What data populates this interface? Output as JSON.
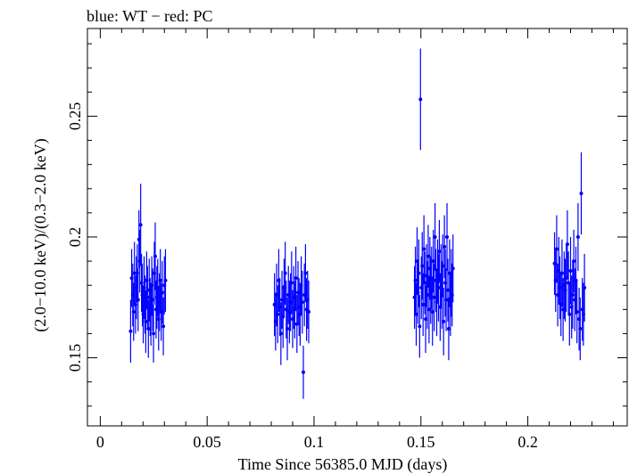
{
  "chart_data": {
    "type": "scatter",
    "title": "blue: WT − red: PC",
    "xlabel": "Time Since 56385.0 MJD (days)",
    "ylabel": "(2.0−10.0 keV)/(0.3−2.0 keV)",
    "xlim": [
      -0.006,
      0.2465
    ],
    "ylim": [
      0.1218,
      0.2863
    ],
    "x_ticks": [
      {
        "value": 0,
        "label": "0"
      },
      {
        "value": 0.05,
        "label": "0.05"
      },
      {
        "value": 0.1,
        "label": "0.1"
      },
      {
        "value": 0.15,
        "label": "0.15"
      },
      {
        "value": 0.2,
        "label": "0.2"
      }
    ],
    "y_ticks": [
      {
        "value": 0.15,
        "label": "0.15"
      },
      {
        "value": 0.2,
        "label": "0.2"
      },
      {
        "value": 0.25,
        "label": "0.25"
      }
    ],
    "grid": false,
    "legend": "none",
    "colors": {
      "WT": "#0000ff",
      "PC": "#ff0000"
    },
    "series": [
      {
        "name": "WT",
        "points": [
          {
            "x": 0.0142,
            "y": 0.161,
            "err": 0.013
          },
          {
            "x": 0.0147,
            "y": 0.183,
            "err": 0.012
          },
          {
            "x": 0.0152,
            "y": 0.176,
            "err": 0.013
          },
          {
            "x": 0.0156,
            "y": 0.169,
            "err": 0.012
          },
          {
            "x": 0.016,
            "y": 0.185,
            "err": 0.013
          },
          {
            "x": 0.0165,
            "y": 0.172,
            "err": 0.012
          },
          {
            "x": 0.0169,
            "y": 0.179,
            "err": 0.013
          },
          {
            "x": 0.0173,
            "y": 0.185,
            "err": 0.012
          },
          {
            "x": 0.0177,
            "y": 0.174,
            "err": 0.013
          },
          {
            "x": 0.0181,
            "y": 0.199,
            "err": 0.012
          },
          {
            "x": 0.0185,
            "y": 0.19,
            "err": 0.013
          },
          {
            "x": 0.0189,
            "y": 0.205,
            "err": 0.017
          },
          {
            "x": 0.0193,
            "y": 0.181,
            "err": 0.012
          },
          {
            "x": 0.0197,
            "y": 0.176,
            "err": 0.013
          },
          {
            "x": 0.0201,
            "y": 0.168,
            "err": 0.012
          },
          {
            "x": 0.0205,
            "y": 0.179,
            "err": 0.013
          },
          {
            "x": 0.0209,
            "y": 0.172,
            "err": 0.012
          },
          {
            "x": 0.0213,
            "y": 0.165,
            "err": 0.013
          },
          {
            "x": 0.0217,
            "y": 0.182,
            "err": 0.012
          },
          {
            "x": 0.0221,
            "y": 0.175,
            "err": 0.013
          },
          {
            "x": 0.0225,
            "y": 0.162,
            "err": 0.012
          },
          {
            "x": 0.0229,
            "y": 0.178,
            "err": 0.013
          },
          {
            "x": 0.0233,
            "y": 0.171,
            "err": 0.012
          },
          {
            "x": 0.0237,
            "y": 0.168,
            "err": 0.013
          },
          {
            "x": 0.0241,
            "y": 0.18,
            "err": 0.012
          },
          {
            "x": 0.0245,
            "y": 0.174,
            "err": 0.013
          },
          {
            "x": 0.0249,
            "y": 0.16,
            "err": 0.012
          },
          {
            "x": 0.0253,
            "y": 0.185,
            "err": 0.013
          },
          {
            "x": 0.0257,
            "y": 0.192,
            "err": 0.014
          },
          {
            "x": 0.0261,
            "y": 0.17,
            "err": 0.012
          },
          {
            "x": 0.0265,
            "y": 0.175,
            "err": 0.013
          },
          {
            "x": 0.0269,
            "y": 0.179,
            "err": 0.012
          },
          {
            "x": 0.0273,
            "y": 0.166,
            "err": 0.013
          },
          {
            "x": 0.0277,
            "y": 0.173,
            "err": 0.012
          },
          {
            "x": 0.0281,
            "y": 0.182,
            "err": 0.013
          },
          {
            "x": 0.0285,
            "y": 0.169,
            "err": 0.012
          },
          {
            "x": 0.029,
            "y": 0.177,
            "err": 0.013
          },
          {
            "x": 0.0295,
            "y": 0.163,
            "err": 0.012
          },
          {
            "x": 0.03,
            "y": 0.18,
            "err": 0.012
          },
          {
            "x": 0.0305,
            "y": 0.182,
            "err": 0.013
          },
          {
            "x": 0.0815,
            "y": 0.172,
            "err": 0.013
          },
          {
            "x": 0.082,
            "y": 0.165,
            "err": 0.012
          },
          {
            "x": 0.0825,
            "y": 0.176,
            "err": 0.013
          },
          {
            "x": 0.083,
            "y": 0.168,
            "err": 0.012
          },
          {
            "x": 0.0835,
            "y": 0.182,
            "err": 0.013
          },
          {
            "x": 0.084,
            "y": 0.171,
            "err": 0.012
          },
          {
            "x": 0.0845,
            "y": 0.16,
            "err": 0.013
          },
          {
            "x": 0.085,
            "y": 0.174,
            "err": 0.012
          },
          {
            "x": 0.0855,
            "y": 0.167,
            "err": 0.013
          },
          {
            "x": 0.086,
            "y": 0.179,
            "err": 0.012
          },
          {
            "x": 0.0865,
            "y": 0.185,
            "err": 0.013
          },
          {
            "x": 0.087,
            "y": 0.17,
            "err": 0.012
          },
          {
            "x": 0.0875,
            "y": 0.162,
            "err": 0.013
          },
          {
            "x": 0.088,
            "y": 0.176,
            "err": 0.012
          },
          {
            "x": 0.0885,
            "y": 0.169,
            "err": 0.013
          },
          {
            "x": 0.089,
            "y": 0.173,
            "err": 0.012
          },
          {
            "x": 0.0895,
            "y": 0.181,
            "err": 0.013
          },
          {
            "x": 0.09,
            "y": 0.166,
            "err": 0.012
          },
          {
            "x": 0.0905,
            "y": 0.175,
            "err": 0.013
          },
          {
            "x": 0.091,
            "y": 0.17,
            "err": 0.012
          },
          {
            "x": 0.0915,
            "y": 0.183,
            "err": 0.013
          },
          {
            "x": 0.092,
            "y": 0.164,
            "err": 0.012
          },
          {
            "x": 0.0925,
            "y": 0.177,
            "err": 0.013
          },
          {
            "x": 0.093,
            "y": 0.171,
            "err": 0.012
          },
          {
            "x": 0.0935,
            "y": 0.168,
            "err": 0.013
          },
          {
            "x": 0.094,
            "y": 0.18,
            "err": 0.012
          },
          {
            "x": 0.0945,
            "y": 0.173,
            "err": 0.013
          },
          {
            "x": 0.095,
            "y": 0.144,
            "err": 0.011
          },
          {
            "x": 0.0955,
            "y": 0.176,
            "err": 0.013
          },
          {
            "x": 0.096,
            "y": 0.185,
            "err": 0.012
          },
          {
            "x": 0.0965,
            "y": 0.17,
            "err": 0.013
          },
          {
            "x": 0.097,
            "y": 0.174,
            "err": 0.012
          },
          {
            "x": 0.0975,
            "y": 0.169,
            "err": 0.013
          },
          {
            "x": 0.147,
            "y": 0.175,
            "err": 0.013
          },
          {
            "x": 0.1474,
            "y": 0.182,
            "err": 0.014
          },
          {
            "x": 0.1478,
            "y": 0.168,
            "err": 0.013
          },
          {
            "x": 0.1482,
            "y": 0.19,
            "err": 0.014
          },
          {
            "x": 0.1486,
            "y": 0.177,
            "err": 0.013
          },
          {
            "x": 0.149,
            "y": 0.185,
            "err": 0.014
          },
          {
            "x": 0.1494,
            "y": 0.163,
            "err": 0.013
          },
          {
            "x": 0.1498,
            "y": 0.257,
            "err": 0.021
          },
          {
            "x": 0.1502,
            "y": 0.179,
            "err": 0.013
          },
          {
            "x": 0.1506,
            "y": 0.188,
            "err": 0.014
          },
          {
            "x": 0.151,
            "y": 0.172,
            "err": 0.013
          },
          {
            "x": 0.1514,
            "y": 0.195,
            "err": 0.014
          },
          {
            "x": 0.1518,
            "y": 0.181,
            "err": 0.013
          },
          {
            "x": 0.1522,
            "y": 0.166,
            "err": 0.014
          },
          {
            "x": 0.1526,
            "y": 0.184,
            "err": 0.013
          },
          {
            "x": 0.153,
            "y": 0.176,
            "err": 0.014
          },
          {
            "x": 0.1534,
            "y": 0.192,
            "err": 0.013
          },
          {
            "x": 0.1538,
            "y": 0.17,
            "err": 0.014
          },
          {
            "x": 0.1542,
            "y": 0.187,
            "err": 0.013
          },
          {
            "x": 0.1546,
            "y": 0.178,
            "err": 0.014
          },
          {
            "x": 0.155,
            "y": 0.183,
            "err": 0.013
          },
          {
            "x": 0.1554,
            "y": 0.169,
            "err": 0.014
          },
          {
            "x": 0.1558,
            "y": 0.19,
            "err": 0.013
          },
          {
            "x": 0.1562,
            "y": 0.175,
            "err": 0.014
          },
          {
            "x": 0.1566,
            "y": 0.2,
            "err": 0.014
          },
          {
            "x": 0.157,
            "y": 0.182,
            "err": 0.013
          },
          {
            "x": 0.1574,
            "y": 0.173,
            "err": 0.014
          },
          {
            "x": 0.1578,
            "y": 0.186,
            "err": 0.013
          },
          {
            "x": 0.1582,
            "y": 0.179,
            "err": 0.014
          },
          {
            "x": 0.1586,
            "y": 0.194,
            "err": 0.013
          },
          {
            "x": 0.159,
            "y": 0.171,
            "err": 0.014
          },
          {
            "x": 0.1594,
            "y": 0.184,
            "err": 0.013
          },
          {
            "x": 0.1598,
            "y": 0.176,
            "err": 0.014
          },
          {
            "x": 0.1602,
            "y": 0.188,
            "err": 0.013
          },
          {
            "x": 0.1606,
            "y": 0.165,
            "err": 0.014
          },
          {
            "x": 0.161,
            "y": 0.196,
            "err": 0.013
          },
          {
            "x": 0.1614,
            "y": 0.181,
            "err": 0.014
          },
          {
            "x": 0.1618,
            "y": 0.174,
            "err": 0.013
          },
          {
            "x": 0.1622,
            "y": 0.2,
            "err": 0.014
          },
          {
            "x": 0.1626,
            "y": 0.178,
            "err": 0.013
          },
          {
            "x": 0.163,
            "y": 0.162,
            "err": 0.013
          },
          {
            "x": 0.1634,
            "y": 0.185,
            "err": 0.014
          },
          {
            "x": 0.1638,
            "y": 0.172,
            "err": 0.013
          },
          {
            "x": 0.1642,
            "y": 0.181,
            "err": 0.014
          },
          {
            "x": 0.1646,
            "y": 0.176,
            "err": 0.013
          },
          {
            "x": 0.165,
            "y": 0.187,
            "err": 0.014
          },
          {
            "x": 0.2125,
            "y": 0.189,
            "err": 0.013
          },
          {
            "x": 0.213,
            "y": 0.182,
            "err": 0.013
          },
          {
            "x": 0.2135,
            "y": 0.195,
            "err": 0.014
          },
          {
            "x": 0.214,
            "y": 0.176,
            "err": 0.013
          },
          {
            "x": 0.2145,
            "y": 0.186,
            "err": 0.014
          },
          {
            "x": 0.215,
            "y": 0.179,
            "err": 0.013
          },
          {
            "x": 0.2155,
            "y": 0.172,
            "err": 0.013
          },
          {
            "x": 0.216,
            "y": 0.185,
            "err": 0.014
          },
          {
            "x": 0.2165,
            "y": 0.17,
            "err": 0.013
          },
          {
            "x": 0.217,
            "y": 0.18,
            "err": 0.014
          },
          {
            "x": 0.2175,
            "y": 0.178,
            "err": 0.013
          },
          {
            "x": 0.218,
            "y": 0.183,
            "err": 0.014
          },
          {
            "x": 0.2185,
            "y": 0.197,
            "err": 0.014
          },
          {
            "x": 0.219,
            "y": 0.181,
            "err": 0.013
          },
          {
            "x": 0.2195,
            "y": 0.168,
            "err": 0.013
          },
          {
            "x": 0.22,
            "y": 0.186,
            "err": 0.014
          },
          {
            "x": 0.2205,
            "y": 0.171,
            "err": 0.013
          },
          {
            "x": 0.221,
            "y": 0.176,
            "err": 0.014
          },
          {
            "x": 0.2215,
            "y": 0.19,
            "err": 0.013
          },
          {
            "x": 0.222,
            "y": 0.174,
            "err": 0.013
          },
          {
            "x": 0.2225,
            "y": 0.182,
            "err": 0.014
          },
          {
            "x": 0.223,
            "y": 0.169,
            "err": 0.013
          },
          {
            "x": 0.2235,
            "y": 0.2,
            "err": 0.014
          },
          {
            "x": 0.224,
            "y": 0.166,
            "err": 0.013
          },
          {
            "x": 0.2245,
            "y": 0.162,
            "err": 0.013
          },
          {
            "x": 0.225,
            "y": 0.218,
            "err": 0.017
          },
          {
            "x": 0.2255,
            "y": 0.17,
            "err": 0.013
          },
          {
            "x": 0.226,
            "y": 0.168,
            "err": 0.013
          },
          {
            "x": 0.2265,
            "y": 0.179,
            "err": 0.014
          }
        ]
      },
      {
        "name": "PC",
        "points": []
      }
    ]
  }
}
